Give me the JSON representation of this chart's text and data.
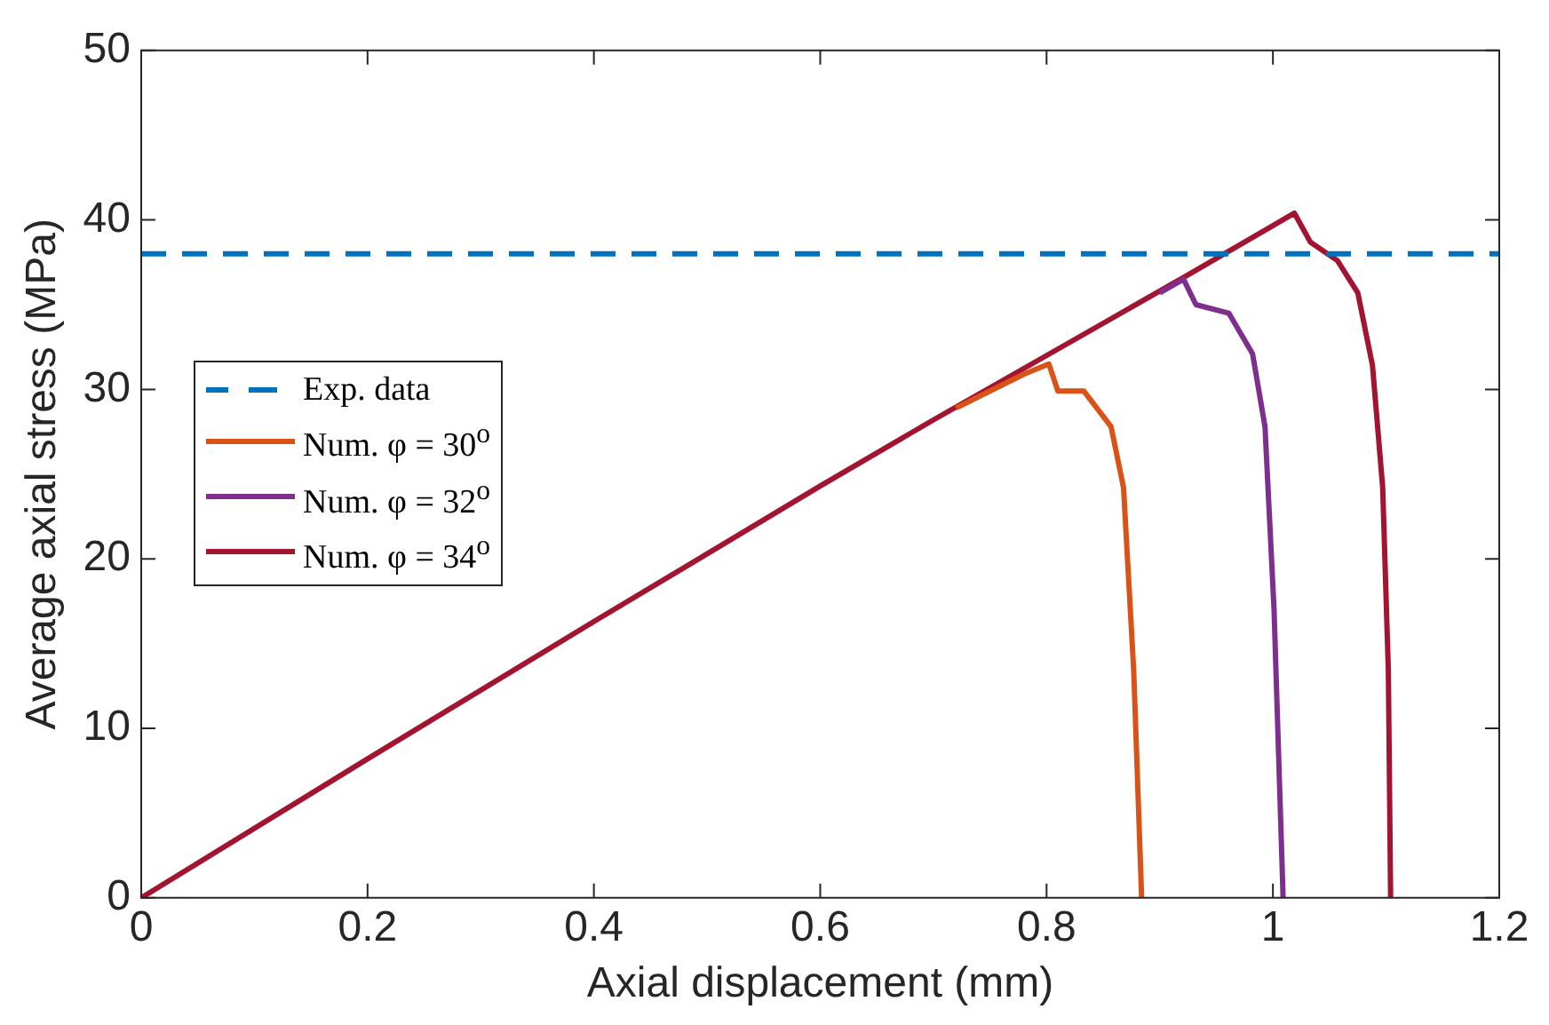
{
  "chart_data": {
    "type": "line",
    "xlabel": "Axial displacement (mm)",
    "ylabel": "Average axial stress (MPa)",
    "xlim": [
      0,
      1.2
    ],
    "xticks": [
      0,
      0.2,
      0.4,
      0.6,
      0.8,
      1,
      1.2
    ],
    "ylim": [
      0,
      50
    ],
    "yticks": [
      0,
      10,
      20,
      30,
      40,
      50
    ],
    "grid": false,
    "legend": "left",
    "marker": "none",
    "series": [
      {
        "name": "Exp. data",
        "color": "#0072bd",
        "line_style": "dashed",
        "x": [
          0,
          1.2
        ],
        "values": [
          38,
          38
        ]
      },
      {
        "name": "Num. φ = 30$^{o}$",
        "color": "#d95319",
        "line_style": "solid",
        "x": [
          0.72,
          0.75,
          0.78,
          0.802,
          0.81,
          0.833,
          0.857,
          0.868,
          0.877,
          0.884
        ],
        "values": [
          28.9,
          29.9,
          30.9,
          31.5,
          29.9,
          29.9,
          27.8,
          24.2,
          13.4,
          0
        ]
      },
      {
        "name": "Num. φ = 32$^{o}$",
        "color": "#7e2f8e",
        "line_style": "solid",
        "x": [
          0.9,
          0.921,
          0.932,
          0.961,
          0.982,
          0.993,
          1.001,
          1.009
        ],
        "values": [
          35.7,
          36.5,
          35.0,
          34.5,
          32.1,
          27.8,
          17.0,
          0
        ]
      },
      {
        "name": "Num. φ = 34$^{o}$",
        "color": "#a2142f",
        "line_style": "solid",
        "x": [
          0,
          0.2,
          0.4,
          0.6,
          0.7,
          0.8,
          0.921,
          1.019,
          1.033,
          1.057,
          1.075,
          1.088,
          1.097,
          1.102,
          1.104
        ],
        "values": [
          0,
          8.2,
          16.3,
          24.3,
          28.2,
          32.0,
          36.6,
          40.4,
          38.7,
          37.6,
          35.7,
          31.4,
          24.2,
          13.4,
          0
        ]
      }
    ]
  }
}
